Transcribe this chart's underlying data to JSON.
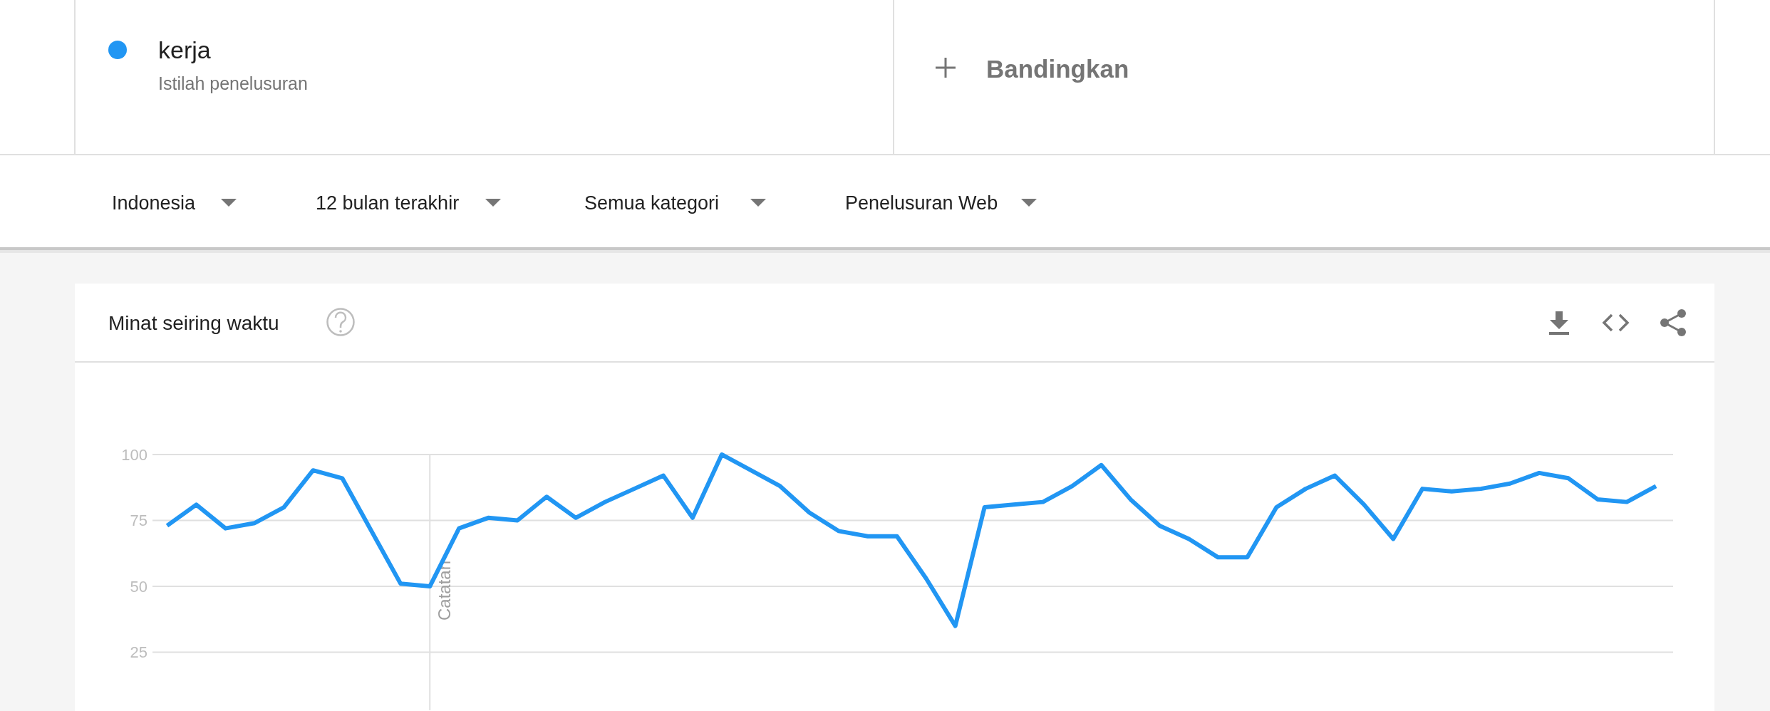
{
  "chart_data": {
    "type": "line",
    "title": "Minat seiring waktu",
    "categories": [
      null,
      null,
      null,
      null,
      null,
      null,
      null,
      null,
      null,
      null,
      null,
      null,
      null,
      null,
      null,
      null,
      null,
      null,
      null,
      null,
      null,
      null,
      null,
      null,
      null,
      null,
      null,
      null,
      null,
      null,
      null,
      null,
      null,
      null,
      null,
      null,
      null,
      null,
      null,
      null,
      null,
      null,
      null,
      null,
      null,
      null,
      null,
      null,
      null,
      null,
      null,
      null
    ],
    "series": [
      {
        "name": "kerja",
        "color": "#2196f3",
        "values": [
          73,
          81,
          72,
          74,
          80,
          94,
          91,
          71,
          51,
          50,
          72,
          76,
          75,
          84,
          76,
          82,
          87,
          92,
          76,
          100,
          94,
          88,
          78,
          71,
          69,
          69,
          53,
          35,
          80,
          81,
          82,
          88,
          96,
          83,
          73,
          68,
          61,
          61,
          80,
          87,
          92,
          81,
          68,
          87,
          86,
          87,
          89,
          93,
          91,
          83,
          82,
          88
        ]
      }
    ],
    "ylim": [
      3,
      100
    ],
    "yticks": [
      25,
      50,
      75,
      100
    ],
    "grid": "y",
    "tick_labels": "y",
    "legend": "top left",
    "annotations": [
      "Istilah penelusuran",
      "Bandingkan",
      "Indonesia",
      "12 bulan terakhir",
      "Semua kategori",
      "Penelusuran Web",
      "Catatan"
    ]
  }
}
